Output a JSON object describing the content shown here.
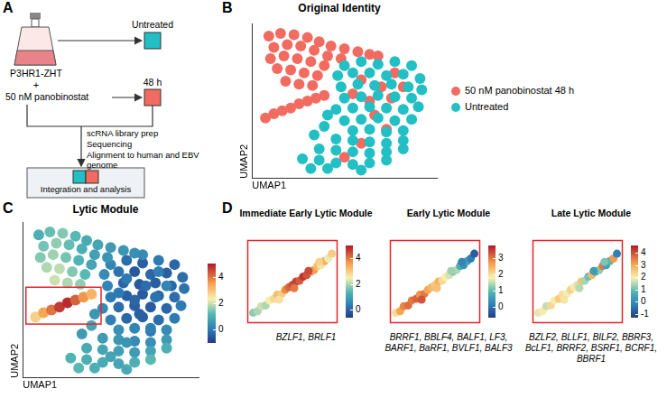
{
  "panel_labels": [
    "A",
    "B",
    "C",
    "D"
  ],
  "schematic": {
    "start": "P3HR1-ZHT",
    "plus": "+",
    "treatment": "50 nM panobinostat",
    "arms": [
      "Untreated",
      "48 h"
    ],
    "steps": [
      "scRNA library prep",
      "Sequencing",
      "Alignment to human and EBV genome"
    ],
    "result": "Integration and analysis"
  },
  "chart_data": [
    {
      "type": "scatter",
      "title": "Original Identity",
      "x_label": "UMAP1",
      "y_label": "UMAP2",
      "xlim": [
        -0.5,
        10.5
      ],
      "ylim": [
        -0.5,
        10.5
      ],
      "tick_labels": false,
      "grid": false,
      "legend": "right",
      "series": [
        {
          "name": "50 nM panobinostat 48 h",
          "color": "#f26b61",
          "x": [
            0.5,
            1.2,
            2.0,
            2.8,
            3.5,
            4.2,
            5.0,
            5.8,
            6.5,
            7.0,
            0.8,
            1.6,
            2.4,
            3.2,
            4.0,
            4.8,
            0.6,
            1.4,
            2.2,
            3.0,
            3.8,
            1.0,
            1.8,
            2.6,
            3.4,
            1.5,
            2.3,
            3.1,
            0.3,
            0.8,
            1.3,
            1.8,
            2.3,
            2.8,
            3.3,
            3.8,
            6.0,
            7.2,
            8.0,
            6.5,
            7.8,
            8.5,
            6.8,
            5.5,
            7.5,
            6.0,
            5.0
          ],
          "values": [
            9.6,
            9.8,
            9.7,
            9.5,
            9.2,
            8.9,
            8.7,
            8.5,
            8.3,
            8.2,
            8.8,
            9.0,
            8.9,
            8.6,
            8.2,
            8.0,
            8.0,
            8.2,
            8.0,
            7.8,
            7.5,
            7.3,
            7.2,
            7.0,
            6.8,
            6.4,
            6.2,
            6.1,
            3.8,
            4.1,
            4.3,
            4.5,
            4.8,
            5.0,
            5.2,
            5.4,
            6.5,
            6.0,
            7.0,
            5.0,
            5.2,
            6.0,
            4.0,
            5.5,
            3.0,
            2.0,
            1.0
          ]
        },
        {
          "name": "Untreated",
          "color": "#22bfc4",
          "x": [
            5.0,
            6.0,
            7.0,
            8.0,
            9.0,
            4.6,
            5.5,
            6.5,
            7.5,
            8.5,
            9.5,
            4.8,
            5.8,
            6.8,
            7.8,
            8.8,
            9.6,
            5.0,
            6.0,
            7.0,
            8.0,
            9.0,
            4.5,
            5.5,
            6.5,
            7.5,
            8.5,
            9.4,
            5.0,
            6.0,
            7.0,
            8.0,
            9.0,
            5.5,
            6.5,
            7.5,
            8.5,
            4.5,
            5.5,
            6.5,
            7.5,
            8.5,
            3.5,
            4.5,
            5.5,
            6.5,
            7.5,
            8.5,
            2.5,
            3.5,
            4.5,
            5.5,
            6.5,
            7.5,
            3.0,
            4.0,
            6.0,
            3.8,
            3.2,
            4.0
          ],
          "values": [
            7.5,
            7.8,
            7.6,
            7.8,
            7.5,
            6.8,
            7.0,
            7.0,
            6.8,
            6.9,
            6.6,
            6.0,
            6.2,
            6.1,
            6.2,
            6.0,
            5.8,
            5.2,
            5.3,
            5.4,
            5.3,
            5.2,
            4.4,
            4.5,
            4.6,
            4.5,
            4.4,
            4.6,
            3.6,
            3.7,
            3.8,
            3.6,
            3.7,
            2.9,
            3.0,
            2.8,
            2.9,
            2.3,
            2.2,
            2.1,
            2.0,
            2.2,
            1.6,
            1.5,
            1.4,
            1.3,
            1.4,
            1.6,
            0.9,
            0.8,
            0.6,
            0.5,
            0.6,
            0.8,
            0.2,
            0.2,
            0.1,
            3.2,
            2.6,
            4.0
          ]
        }
      ]
    },
    {
      "type": "scatter",
      "title": "Lytic Module",
      "x_label": "UMAP1",
      "y_label": "UMAP2",
      "xlim": [
        -0.5,
        10.5
      ],
      "ylim": [
        -0.5,
        10.5
      ],
      "tick_labels": false,
      "grid": false,
      "x": [
        5.0,
        6.0,
        7.0,
        8.0,
        9.0,
        4.6,
        5.5,
        6.5,
        7.5,
        8.5,
        9.5,
        4.8,
        5.8,
        6.8,
        7.8,
        8.8,
        9.6,
        5.0,
        6.0,
        7.0,
        8.0,
        9.0,
        4.5,
        5.5,
        6.5,
        7.5,
        8.5,
        9.4,
        5.0,
        6.0,
        7.0,
        8.0,
        9.0,
        5.5,
        6.5,
        7.5,
        8.5,
        4.5,
        5.5,
        6.5,
        7.5,
        8.5,
        3.5,
        4.5,
        5.5,
        6.5,
        7.5,
        8.5,
        2.5,
        3.5,
        4.5,
        5.5,
        6.5,
        7.5,
        3.0,
        4.0,
        6.0,
        3.8,
        3.2,
        4.0,
        0.5,
        1.2,
        2.0,
        2.8,
        3.5,
        4.2,
        5.0,
        5.8,
        6.5,
        7.0,
        0.8,
        1.6,
        2.4,
        3.2,
        4.0,
        4.8,
        0.6,
        1.4,
        2.2,
        3.0,
        3.8,
        1.0,
        1.8,
        2.6,
        3.4,
        1.5,
        2.3,
        3.1,
        0.3,
        0.8,
        1.3,
        1.8,
        2.3,
        2.8,
        3.3,
        3.8,
        6.0,
        7.2,
        8.0,
        6.5,
        7.8,
        8.5,
        6.8,
        5.5,
        7.5,
        6.0,
        5.0
      ],
      "values": [
        7.5,
        7.8,
        7.6,
        7.8,
        7.5,
        6.8,
        7.0,
        7.0,
        6.8,
        6.9,
        6.6,
        6.0,
        6.2,
        6.1,
        6.2,
        6.0,
        5.8,
        5.2,
        5.3,
        5.4,
        5.3,
        5.2,
        4.4,
        4.5,
        4.6,
        4.5,
        4.4,
        4.6,
        3.6,
        3.7,
        3.8,
        3.6,
        3.7,
        2.9,
        3.0,
        2.8,
        2.9,
        2.3,
        2.2,
        2.1,
        2.0,
        2.2,
        1.6,
        1.5,
        1.4,
        1.3,
        1.4,
        1.6,
        0.9,
        0.8,
        0.6,
        0.5,
        0.6,
        0.8,
        0.2,
        0.2,
        0.1,
        3.2,
        2.6,
        4.0,
        9.6,
        9.8,
        9.7,
        9.5,
        9.2,
        8.9,
        8.7,
        8.5,
        8.3,
        8.2,
        8.8,
        9.0,
        8.9,
        8.6,
        8.2,
        8.0,
        8.0,
        8.2,
        8.0,
        7.8,
        7.5,
        7.3,
        7.2,
        7.0,
        6.8,
        6.4,
        6.2,
        6.1,
        3.8,
        4.1,
        4.3,
        4.5,
        4.8,
        5.0,
        5.2,
        5.4,
        6.5,
        6.0,
        7.0,
        5.0,
        5.2,
        6.0,
        4.0,
        5.5,
        3.0,
        2.0,
        1.0
      ],
      "scores": [
        0.2,
        -0.2,
        -0.4,
        0.0,
        -0.3,
        0.3,
        -0.1,
        -0.5,
        -0.3,
        -0.4,
        -0.2,
        0.2,
        -0.3,
        -0.5,
        -0.4,
        -0.3,
        -0.1,
        0.0,
        -0.4,
        -0.5,
        -0.3,
        -0.2,
        0.3,
        -0.2,
        -0.4,
        -0.5,
        -0.3,
        0.0,
        0.1,
        -0.3,
        -0.4,
        -0.2,
        0.0,
        0.4,
        0.2,
        0.0,
        0.3,
        0.6,
        0.5,
        0.3,
        0.4,
        0.6,
        0.9,
        0.8,
        0.7,
        0.6,
        0.8,
        1.0,
        1.1,
        1.0,
        0.9,
        0.8,
        1.0,
        1.2,
        1.2,
        1.0,
        0.9,
        0.8,
        0.6,
        0.5,
        1.0,
        1.3,
        1.5,
        1.2,
        0.9,
        0.8,
        0.6,
        0.5,
        0.4,
        0.3,
        1.4,
        1.6,
        1.3,
        1.0,
        0.7,
        0.5,
        1.5,
        1.7,
        1.4,
        1.1,
        0.8,
        1.8,
        1.9,
        1.5,
        1.2,
        2.0,
        1.8,
        1.6,
        2.8,
        3.4,
        4.0,
        4.6,
        4.8,
        4.2,
        3.6,
        3.2,
        0.0,
        -0.2,
        0.1,
        -0.3,
        -0.1,
        0.2,
        -0.4,
        0.0,
        0.1,
        0.5,
        0.8
      ],
      "colorbar": {
        "lim": [
          -1,
          5
        ],
        "ticks": [
          0,
          2,
          4
        ]
      },
      "highlight_box": {
        "x": [
          -0.3,
          4.4
        ],
        "y": [
          3.3,
          5.9
        ]
      }
    },
    {
      "type": "scatter",
      "title": "Immediate Early Lytic Module",
      "genes": "BZLF1, BRLF1",
      "xlim": [
        0,
        10
      ],
      "ylim": [
        0,
        10
      ],
      "tick_labels": false,
      "grid": false,
      "x": [
        0.6,
        1.1,
        1.5,
        2.0,
        2.4,
        2.9,
        3.3,
        3.8,
        4.2,
        4.6,
        5.0,
        5.4,
        5.8,
        6.2,
        6.6,
        7.0,
        7.4,
        7.8,
        8.2,
        8.6,
        9.0,
        9.4,
        3.5,
        5.2,
        6.8,
        8.0
      ],
      "values": [
        1.2,
        1.4,
        2.0,
        2.1,
        2.7,
        2.9,
        3.4,
        3.5,
        4.0,
        4.3,
        4.6,
        5.0,
        5.1,
        5.6,
        5.8,
        6.2,
        6.4,
        6.9,
        7.0,
        7.5,
        7.8,
        8.4,
        2.8,
        4.2,
        6.3,
        7.4
      ],
      "scores": [
        1.8,
        2.0,
        2.2,
        2.0,
        2.5,
        2.8,
        3.2,
        3.0,
        3.8,
        4.2,
        4.5,
        4.6,
        4.3,
        4.7,
        4.4,
        4.0,
        3.6,
        3.2,
        2.6,
        3.4,
        2.4,
        3.0,
        2.7,
        4.0,
        4.5,
        2.9
      ],
      "colorbar": {
        "lim": [
          -0.6,
          5.0
        ],
        "ticks": [
          0,
          2,
          4
        ]
      }
    },
    {
      "type": "scatter",
      "title": "Early Lytic Module",
      "genes": "BRRF1, BBLF4, BALF1, LF3, BARF1, BaRF1, BVLF1, BALF3",
      "xlim": [
        0,
        10
      ],
      "ylim": [
        0,
        10
      ],
      "tick_labels": false,
      "grid": false,
      "x": [
        0.6,
        1.1,
        1.5,
        2.0,
        2.4,
        2.9,
        3.3,
        3.8,
        4.2,
        4.6,
        5.0,
        5.4,
        5.8,
        6.2,
        6.6,
        7.0,
        7.4,
        7.8,
        8.2,
        8.6,
        9.0,
        9.4,
        3.5,
        5.2,
        6.8,
        8.0
      ],
      "values": [
        1.2,
        1.4,
        2.0,
        2.1,
        2.7,
        2.9,
        3.4,
        3.5,
        4.0,
        4.3,
        4.6,
        5.0,
        5.1,
        5.6,
        5.8,
        6.2,
        6.4,
        6.9,
        7.0,
        7.5,
        7.8,
        8.4,
        2.8,
        4.2,
        6.3,
        7.4
      ],
      "scores": [
        2.0,
        2.6,
        2.9,
        3.1,
        3.0,
        3.2,
        2.8,
        3.0,
        2.6,
        2.4,
        2.2,
        2.5,
        2.0,
        1.8,
        1.6,
        1.2,
        1.4,
        0.8,
        0.4,
        0.6,
        0.1,
        -0.3,
        3.3,
        2.3,
        1.3,
        0.2
      ],
      "colorbar": {
        "lim": [
          -0.7,
          3.8
        ],
        "ticks": [
          0,
          1,
          2,
          3
        ]
      }
    },
    {
      "type": "scatter",
      "title": "Late Lytic Module",
      "genes": "BZLF2, BLLF1, BILF2, BBRF3, BcLF1, BRRF2, BSRF1, BCRF1, BBRF1",
      "xlim": [
        0,
        10
      ],
      "ylim": [
        0,
        10
      ],
      "tick_labels": false,
      "grid": false,
      "x": [
        0.6,
        1.1,
        1.5,
        2.0,
        2.4,
        2.9,
        3.3,
        3.8,
        4.2,
        4.6,
        5.0,
        5.4,
        5.8,
        6.2,
        6.6,
        7.0,
        7.4,
        7.8,
        8.2,
        8.6,
        9.0,
        9.4,
        3.5,
        5.2,
        6.8,
        8.0
      ],
      "values": [
        1.2,
        1.4,
        2.0,
        2.1,
        2.7,
        2.9,
        3.4,
        3.5,
        4.0,
        4.3,
        4.6,
        5.0,
        5.1,
        5.6,
        5.8,
        6.2,
        6.4,
        6.9,
        7.0,
        7.5,
        7.8,
        8.4,
        2.8,
        4.2,
        6.3,
        7.4
      ],
      "scores": [
        1.8,
        2.0,
        1.6,
        2.3,
        2.0,
        2.5,
        2.2,
        1.9,
        2.4,
        2.0,
        1.7,
        2.6,
        1.4,
        1.0,
        2.8,
        0.6,
        1.2,
        3.6,
        0.4,
        0.8,
        3.2,
        -0.2,
        2.1,
        1.5,
        0.3,
        1.1
      ],
      "colorbar": {
        "lim": [
          -1.3,
          4.6
        ],
        "ticks": [
          -1,
          0,
          1,
          2,
          3,
          4
        ]
      }
    }
  ]
}
